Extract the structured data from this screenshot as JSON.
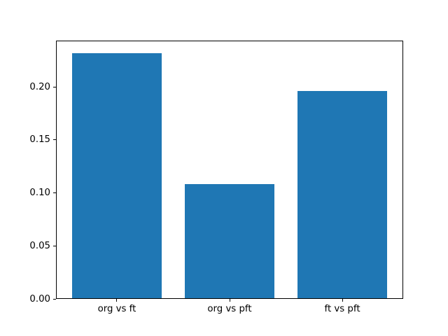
{
  "figure": {
    "background": "#ffffff",
    "frame_color": "#000000",
    "text_color": "#000000"
  },
  "chart_data": {
    "type": "bar",
    "title": "",
    "xlabel": "",
    "ylabel": "",
    "categories": [
      "org vs ft",
      "org vs pft",
      "ft vs pft"
    ],
    "values": [
      0.232,
      0.108,
      0.196
    ],
    "bar_color": "#1f77b4",
    "bar_width": 0.8,
    "xlim": [
      -0.54,
      2.54
    ],
    "ylim": [
      0,
      0.2436
    ],
    "yticks": [
      0.0,
      0.05,
      0.1,
      0.15,
      0.2
    ],
    "ytick_labels": [
      "0.00",
      "0.05",
      "0.10",
      "0.15",
      "0.20"
    ],
    "grid": false,
    "legend": "none"
  }
}
